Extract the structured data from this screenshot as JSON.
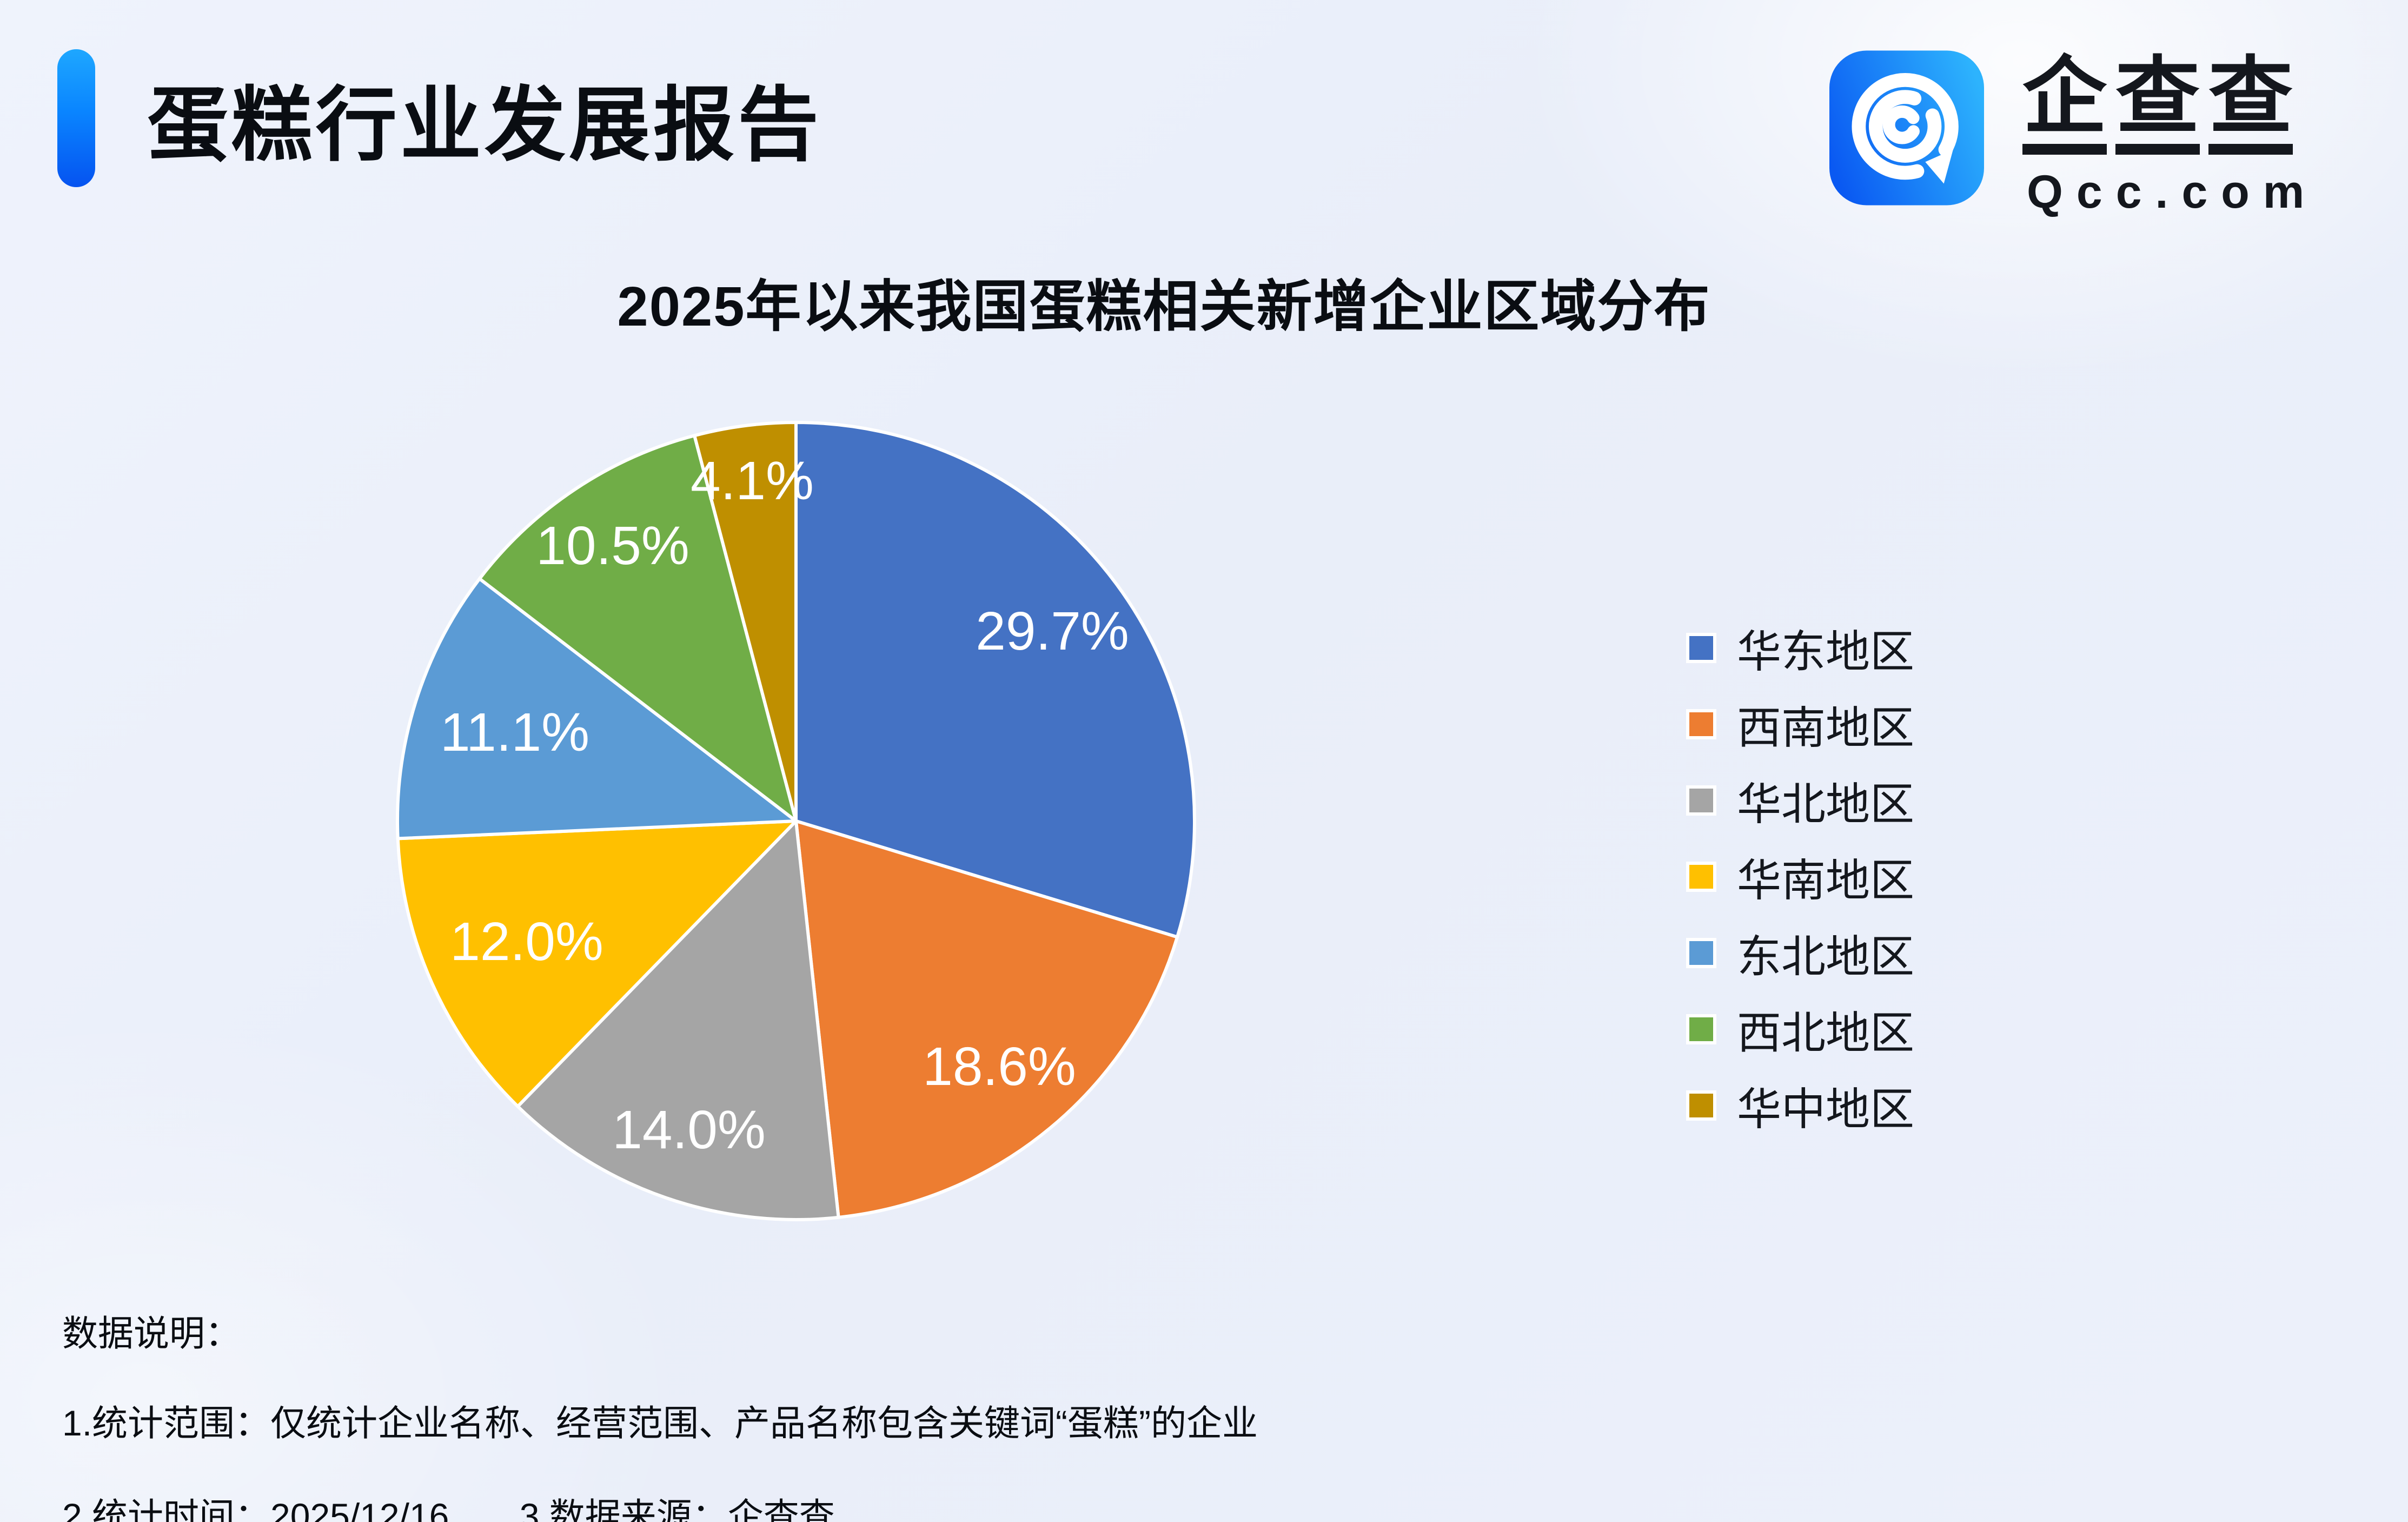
{
  "header": {
    "title": "蛋糕行业发展报告",
    "accent_color_top": "#1ea7ff",
    "accent_color_bottom": "#0553f0"
  },
  "logo": {
    "brand": "企查查",
    "domain": "Qcc.com",
    "icon_gradient_start": "#0a59f2",
    "icon_gradient_end": "#2db3fd"
  },
  "chart_data": {
    "type": "pie",
    "title": "2025年以来我国蛋糕相关新增企业区域分布",
    "start_angle_deg": 0,
    "direction": "clockwise",
    "legend_position": "right",
    "data_label_color": "#ffffff",
    "slice_border_color": "#ffffff",
    "slices": [
      {
        "label": "华东地区",
        "value": 29.7,
        "display": "29.7%",
        "color": "#4472C4"
      },
      {
        "label": "西南地区",
        "value": 18.6,
        "display": "18.6%",
        "color": "#ED7D31"
      },
      {
        "label": "华北地区",
        "value": 14.0,
        "display": "14.0%",
        "color": "#A5A5A5"
      },
      {
        "label": "华南地区",
        "value": 12.0,
        "display": "12.0%",
        "color": "#FFC000"
      },
      {
        "label": "东北地区",
        "value": 11.1,
        "display": "11.1%",
        "color": "#5B9BD5"
      },
      {
        "label": "西北地区",
        "value": 10.5,
        "display": "10.5%",
        "color": "#70AD47"
      },
      {
        "label": "华中地区",
        "value": 4.1,
        "display": "4.1%",
        "color": "#BF8F00"
      }
    ]
  },
  "notes": {
    "heading": "数据说明：",
    "line1": "1.统计范围：仅统计企业名称、经营范围、产品名称包含关键词“蛋糕”的企业",
    "line2_time": "2.统计时间：2025/12/16",
    "line2_source": "3.数据来源：企查查"
  }
}
